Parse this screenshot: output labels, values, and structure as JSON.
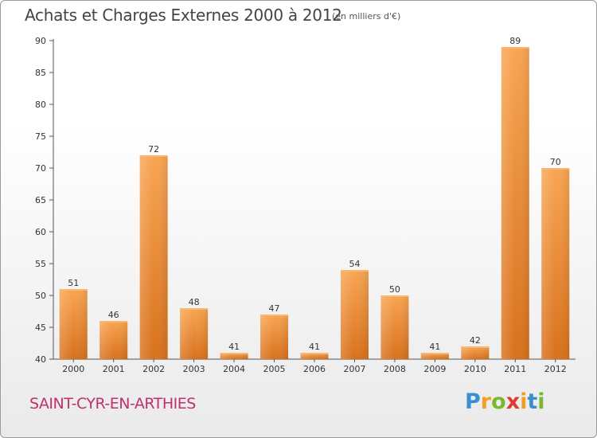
{
  "header": {
    "title": "Achats et Charges Externes 2000 à 2012",
    "subtitle": "(en milliers d'€)"
  },
  "footer": {
    "city": "SAINT-CYR-EN-ARTHIES",
    "brand_letters": [
      {
        "char": "P",
        "color": "#3a8fd0"
      },
      {
        "char": "r",
        "color": "#f0a020"
      },
      {
        "char": "o",
        "color": "#7ab830"
      },
      {
        "char": "x",
        "color": "#e03a30"
      },
      {
        "char": "i",
        "color": "#f0a020"
      },
      {
        "char": "t",
        "color": "#3a8fd0"
      },
      {
        "char": "i",
        "color": "#7ab830"
      }
    ]
  },
  "chart_data": {
    "type": "bar",
    "title": "Achats et Charges Externes 2000 à 2012",
    "subtitle": "(en milliers d'€)",
    "xlabel": "",
    "ylabel": "",
    "categories": [
      "2000",
      "2001",
      "2002",
      "2003",
      "2004",
      "2005",
      "2006",
      "2007",
      "2008",
      "2009",
      "2010",
      "2011",
      "2012"
    ],
    "values": [
      51,
      46,
      72,
      48,
      41,
      47,
      41,
      54,
      50,
      41,
      42,
      89,
      70
    ],
    "ylim": [
      40,
      90
    ],
    "yticks": [
      40,
      45,
      50,
      55,
      60,
      65,
      70,
      75,
      80,
      85,
      90
    ],
    "grid": false,
    "bar_color": "#f0902e"
  }
}
